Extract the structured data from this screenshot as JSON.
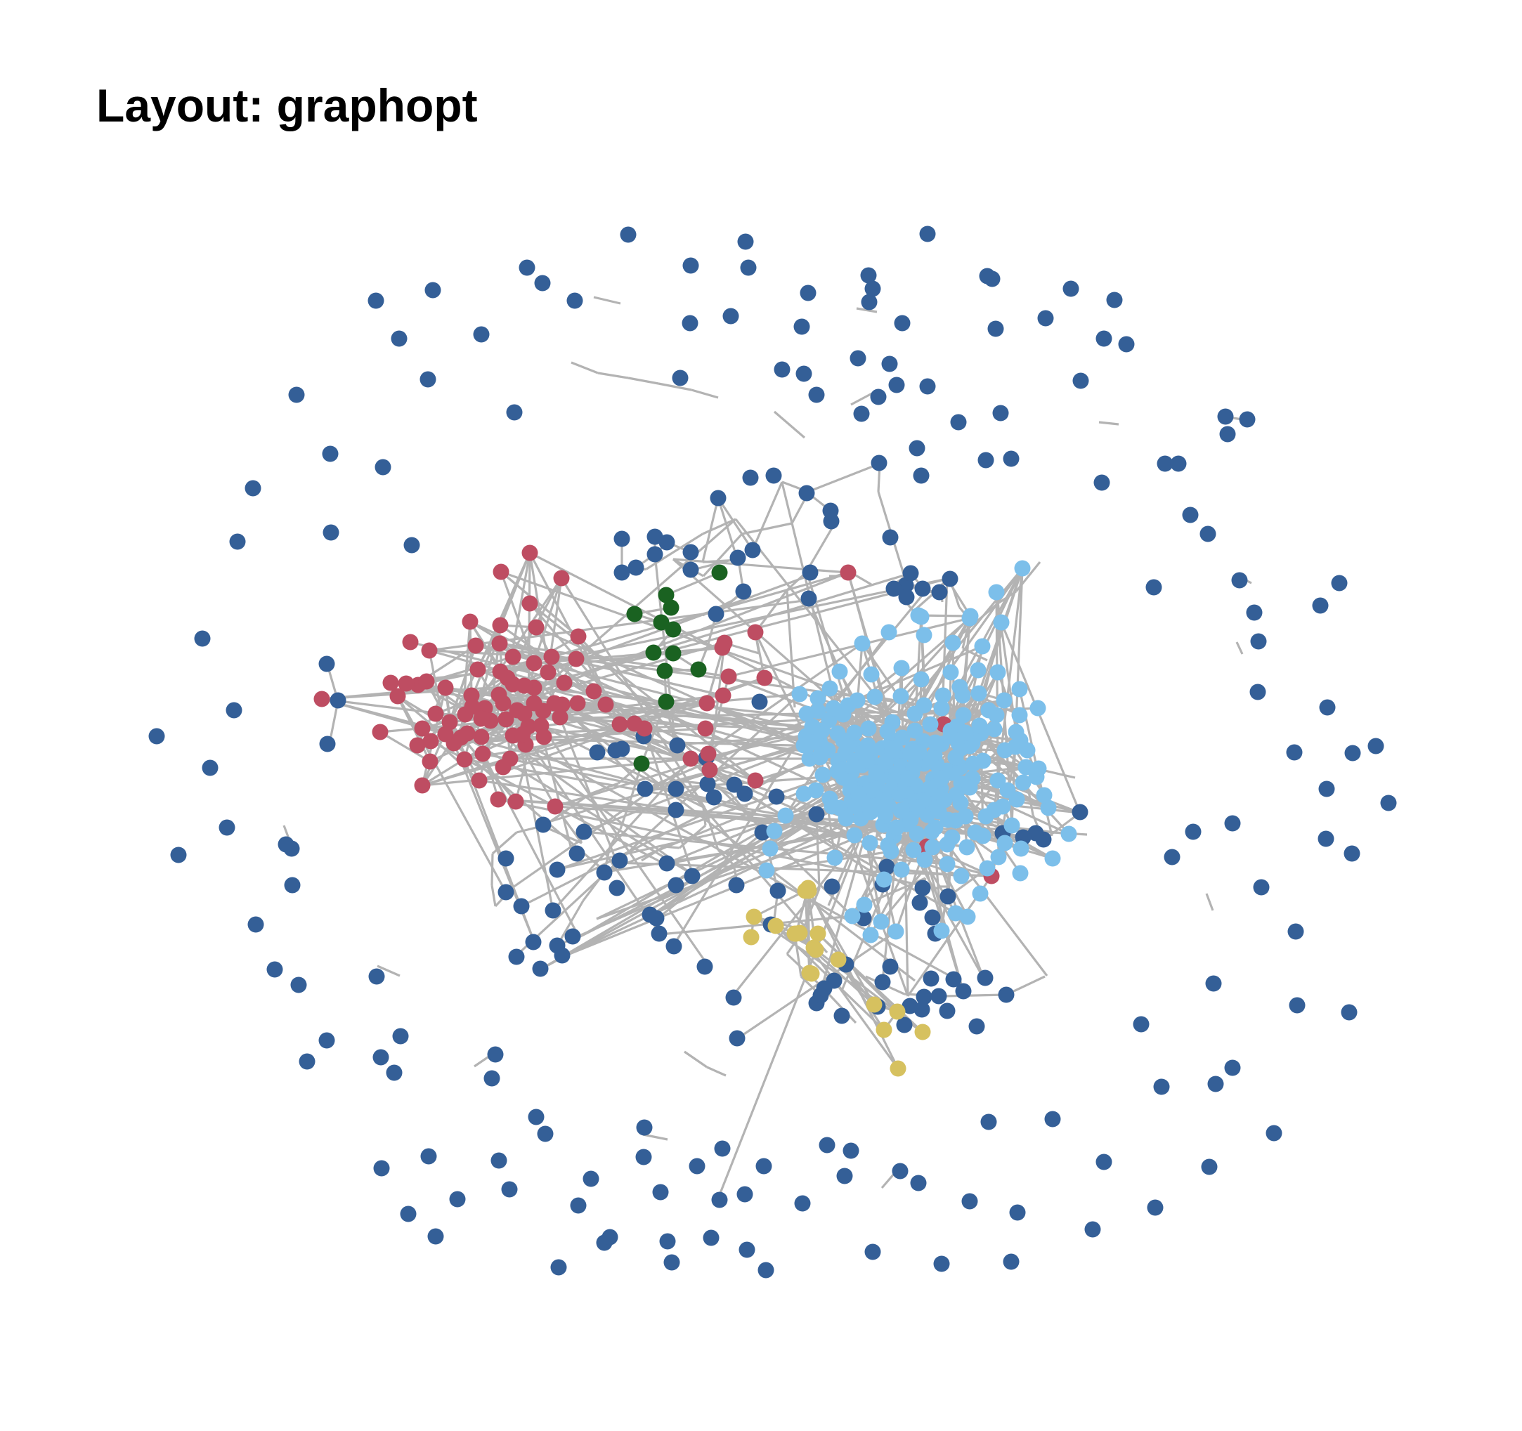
{
  "title": "Layout: graphopt",
  "colors": {
    "node_blue": "#345F97",
    "node_red": "#BE4D62",
    "node_lightblue": "#7CBFEA",
    "node_green": "#1A6221",
    "node_yellow": "#D6C15F",
    "edge": "#B3B3B3"
  }
}
